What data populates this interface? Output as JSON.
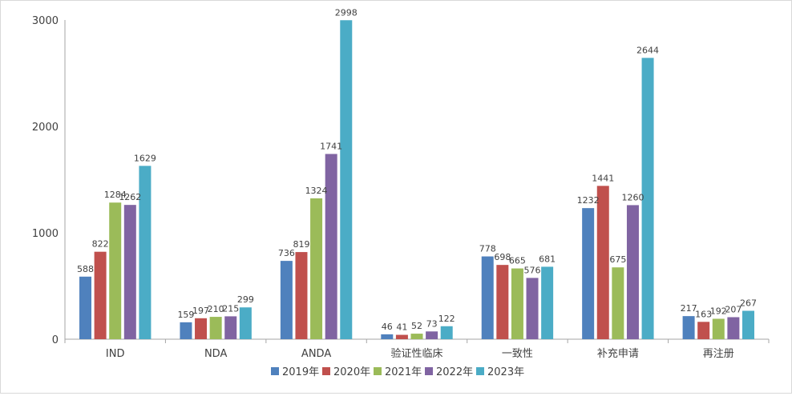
{
  "chart_data": {
    "type": "bar",
    "title": "",
    "xlabel": "",
    "ylabel": "",
    "ylim": [
      0,
      3000
    ],
    "yticks": [
      0,
      1000,
      2000,
      3000
    ],
    "gridlines": false,
    "legend_position": "bottom-center",
    "categories": [
      "IND",
      "NDA",
      "ANDA",
      "验证性临床",
      "一致性",
      "补充申请",
      "再注册"
    ],
    "series": [
      {
        "name": "2019年",
        "color": "#4f81bd",
        "values": [
          588,
          159,
          736,
          46,
          778,
          1232,
          217
        ]
      },
      {
        "name": "2020年",
        "color": "#c0504d",
        "values": [
          822,
          197,
          819,
          41,
          698,
          1441,
          163
        ]
      },
      {
        "name": "2021年",
        "color": "#9bbb59",
        "values": [
          1284,
          210,
          1324,
          52,
          665,
          675,
          192
        ]
      },
      {
        "name": "2022年",
        "color": "#8064a2",
        "values": [
          1262,
          215,
          1741,
          73,
          576,
          1260,
          207
        ]
      },
      {
        "name": "2023年",
        "color": "#4bacc6",
        "values": [
          1629,
          299,
          2998,
          122,
          681,
          2644,
          267
        ]
      }
    ]
  }
}
